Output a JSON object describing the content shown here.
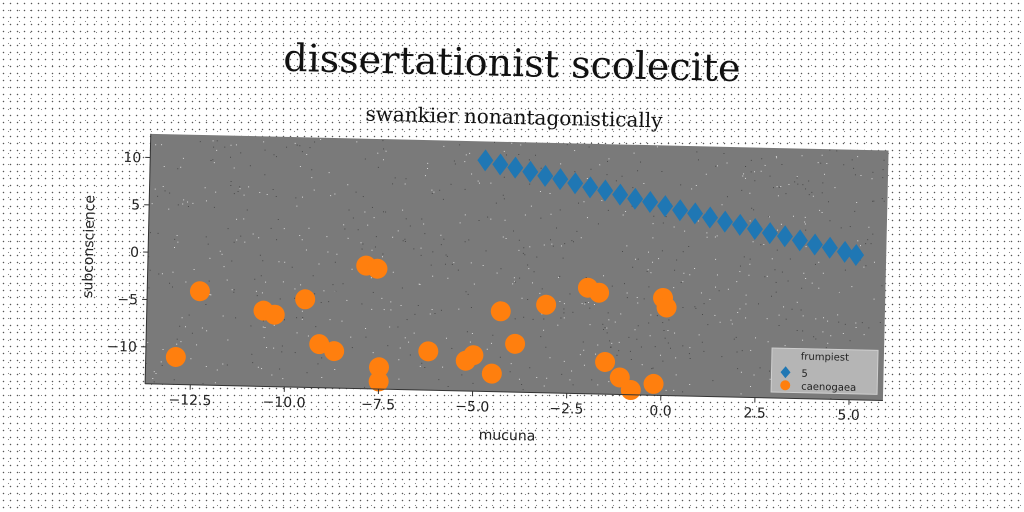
{
  "chart_data": {
    "type": "scatter",
    "title": "dissertationist scolecite",
    "subtitle": "swankier nonantagonistically",
    "xlabel": "mucuna",
    "ylabel": "subconscience",
    "xlim": [
      -13.7,
      5.9
    ],
    "ylim": [
      -13.9,
      12.5
    ],
    "xticks": [
      -12.5,
      -10.0,
      -7.5,
      -5.0,
      -2.5,
      0.0,
      2.5,
      5.0
    ],
    "xtick_labels": [
      "−12.5",
      "−10.0",
      "−7.5",
      "−5.0",
      "−2.5",
      "0.0",
      "2.5",
      "5.0"
    ],
    "yticks": [
      -10,
      -5,
      0,
      5,
      10
    ],
    "ytick_labels": [
      "−10",
      "−5",
      "0",
      "5",
      "10"
    ],
    "grid": false,
    "legend": {
      "title": "frumpiest",
      "placement": "lower-right"
    },
    "series": [
      {
        "name": "5",
        "color": "#1f77b4",
        "marker": "diamond",
        "x": [
          -4.8,
          -4.4,
          -4.0,
          -3.6,
          -3.2,
          -2.8,
          -2.4,
          -2.0,
          -1.6,
          -1.2,
          -0.8,
          -0.4,
          0.0,
          0.4,
          0.8,
          1.2,
          1.6,
          2.0,
          2.4,
          2.8,
          3.2,
          3.6,
          4.0,
          4.4,
          4.8,
          5.1
        ],
        "y": [
          10.5,
          10.1,
          9.8,
          9.4,
          9.0,
          8.7,
          8.3,
          7.9,
          7.6,
          7.2,
          6.8,
          6.5,
          6.1,
          5.7,
          5.4,
          5.0,
          4.6,
          4.3,
          3.9,
          3.5,
          3.2,
          2.8,
          2.4,
          2.1,
          1.7,
          1.4
        ]
      },
      {
        "name": "caenogaea",
        "color": "#ff7f0e",
        "marker": "circle",
        "x": [
          -12.3,
          -10.6,
          -10.3,
          -9.5,
          -9.1,
          -8.7,
          -7.9,
          -7.6,
          -7.5,
          -7.5,
          -6.2,
          -5.2,
          -5.0,
          -4.5,
          -4.3,
          -3.9,
          -3.1,
          -2.0,
          -1.7,
          -1.5,
          -1.1,
          -0.8,
          -0.2,
          0.0,
          0.1,
          -12.9
        ],
        "y": [
          -4.0,
          -5.9,
          -6.3,
          -4.6,
          -9.3,
          -10.0,
          -0.9,
          -1.2,
          -11.6,
          -13.1,
          -9.8,
          -10.7,
          -10.1,
          -12.0,
          -5.4,
          -8.8,
          -4.6,
          -2.7,
          -3.2,
          -10.5,
          -12.1,
          -13.4,
          -12.7,
          -3.6,
          -4.6,
          -11.0
        ]
      }
    ]
  }
}
